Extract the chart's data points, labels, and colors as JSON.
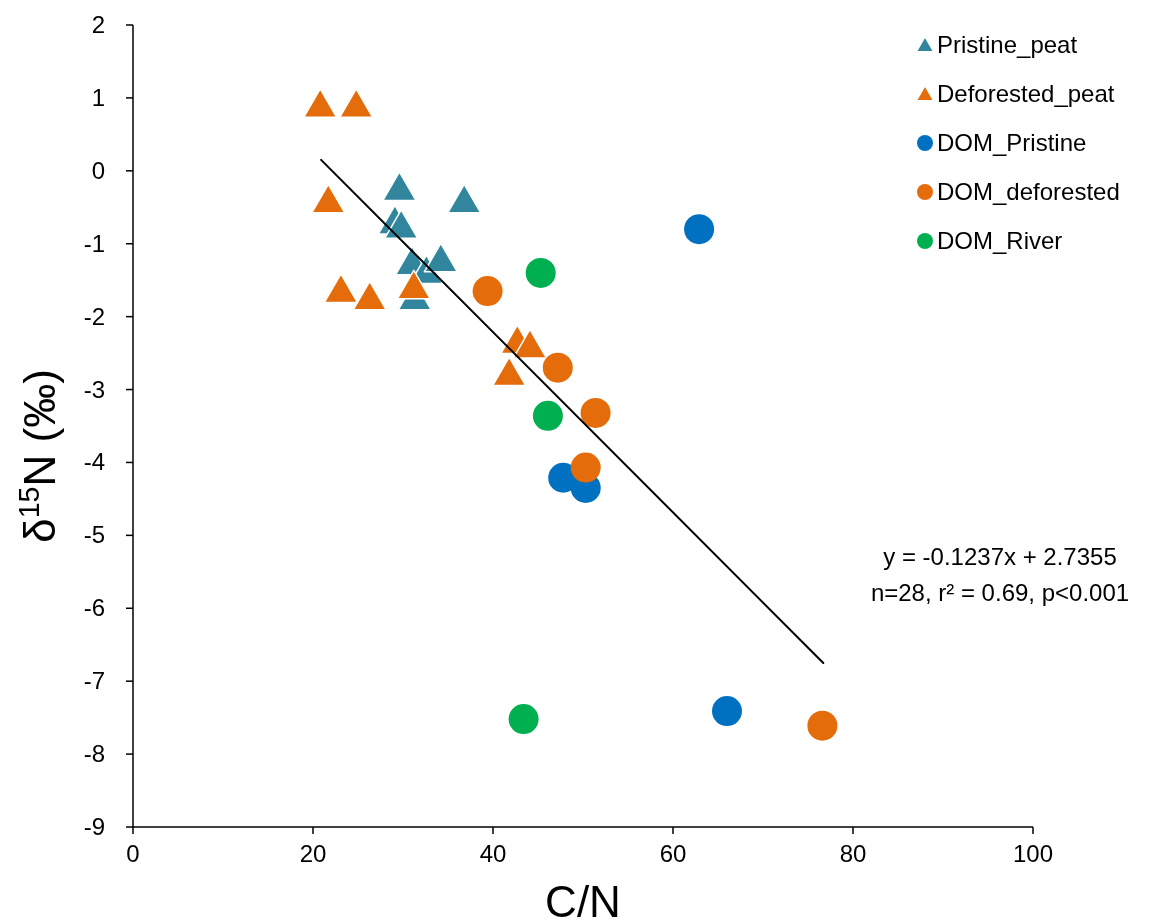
{
  "chart_data": {
    "type": "scatter",
    "xlabel": "C/N",
    "ylabel": "δ$^{15}$N  (‰)",
    "xlim": [
      0,
      100
    ],
    "xticks": [
      0,
      20,
      40,
      60,
      80,
      100
    ],
    "ylim": [
      -9,
      2
    ],
    "yticks": [
      -9,
      -8,
      -7,
      -6,
      -5,
      -4,
      -3,
      -2,
      -1,
      0,
      1,
      2
    ],
    "grid": false,
    "legend": "top right",
    "annotations": [
      "y = -0.1237x + 2.7355",
      "n=28, r² = 0.69, p<0.001"
    ],
    "series": [
      {
        "name": "Pristine_peat",
        "color": "#31859c",
        "marker": "triangle",
        "x": [
          29.6,
          36.8,
          29.1,
          29.8,
          31.0,
          32.6,
          34.2,
          31.3
        ],
        "values": [
          -0.23,
          -0.4,
          -0.69,
          -0.75,
          -1.25,
          -1.37,
          -1.21,
          -1.73
        ]
      },
      {
        "name": "Deforested_peat",
        "color": "#e46c0a",
        "marker": "triangle",
        "x": [
          20.8,
          24.8,
          21.7,
          23.1,
          26.3,
          31.2,
          42.7,
          44.1,
          41.8
        ],
        "values": [
          0.91,
          0.91,
          -0.4,
          -1.63,
          -1.73,
          -1.58,
          -2.33,
          -2.39,
          -2.77
        ]
      },
      {
        "name": "DOM_Pristine",
        "color": "#0070c0",
        "marker": "circle",
        "x": [
          62.9,
          47.8,
          50.3,
          66.0
        ],
        "values": [
          -0.8,
          -4.21,
          -4.35,
          -7.41
        ]
      },
      {
        "name": "DOM_deforested",
        "color": "#e46c0a",
        "marker": "circle",
        "x": [
          39.4,
          47.2,
          51.4,
          50.3,
          76.6
        ],
        "values": [
          -1.65,
          -2.7,
          -3.32,
          -4.07,
          -7.61
        ]
      },
      {
        "name": "DOM_River",
        "color": "#00b050",
        "marker": "circle",
        "x": [
          45.3,
          46.1,
          43.4
        ],
        "values": [
          -1.4,
          -3.36,
          -7.52
        ]
      },
      {
        "type": "line",
        "color": "#000000",
        "marker": "none",
        "x": [
          20.9,
          76.7
        ],
        "values": [
          0.15,
          -6.75
        ]
      }
    ]
  }
}
